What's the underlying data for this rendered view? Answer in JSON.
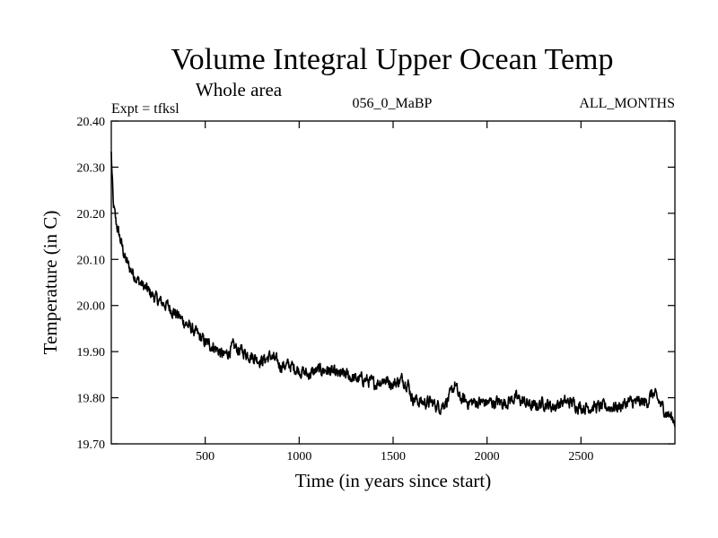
{
  "chart_data": {
    "type": "line",
    "title": "Volume Integral Upper Ocean Temp",
    "subtitle": "Whole area",
    "expt_label": "Expt = tfksl",
    "period_label": "056_0_MaBP",
    "months_label": "ALL_MONTHS",
    "xlabel": "Time (in years since start)",
    "ylabel": "Temperature (in C)",
    "xlim": [
      0,
      3000
    ],
    "ylim": [
      19.7,
      20.4
    ],
    "x_ticks": [
      500,
      1000,
      1500,
      2000,
      2500
    ],
    "x_tick_labels": [
      "500",
      "1000",
      "1500",
      "2000",
      "2500"
    ],
    "y_ticks": [
      19.7,
      19.8,
      19.9,
      20.0,
      20.1,
      20.2,
      20.3,
      20.4
    ],
    "y_tick_labels": [
      "19.70",
      "19.80",
      "19.90",
      "20.00",
      "20.10",
      "20.20",
      "20.30",
      "20.40"
    ],
    "grid": false,
    "series": [
      {
        "name": "tfksl",
        "x": [
          0,
          10,
          25,
          50,
          75,
          100,
          150,
          200,
          250,
          300,
          350,
          400,
          450,
          500,
          550,
          600,
          650,
          700,
          750,
          800,
          850,
          900,
          950,
          1000,
          1050,
          1100,
          1150,
          1200,
          1250,
          1300,
          1350,
          1400,
          1450,
          1500,
          1550,
          1580,
          1600,
          1650,
          1700,
          1750,
          1800,
          1830,
          1850,
          1900,
          1950,
          2000,
          2050,
          2100,
          2150,
          2200,
          2250,
          2300,
          2350,
          2400,
          2450,
          2500,
          2550,
          2600,
          2650,
          2700,
          2750,
          2800,
          2850,
          2880,
          2900,
          2950,
          3000
        ],
        "y": [
          20.33,
          20.22,
          20.18,
          20.14,
          20.1,
          20.08,
          20.05,
          20.03,
          20.01,
          20.0,
          19.98,
          19.96,
          19.94,
          19.92,
          19.91,
          19.89,
          19.91,
          19.9,
          19.89,
          19.88,
          19.89,
          19.87,
          19.87,
          19.86,
          19.85,
          19.86,
          19.86,
          19.85,
          19.85,
          19.84,
          19.84,
          19.83,
          19.84,
          19.83,
          19.84,
          19.83,
          19.8,
          19.79,
          19.79,
          19.78,
          19.8,
          19.83,
          19.8,
          19.79,
          19.79,
          19.79,
          19.79,
          19.79,
          19.8,
          19.79,
          19.78,
          19.79,
          19.78,
          19.79,
          19.79,
          19.78,
          19.78,
          19.78,
          19.78,
          19.78,
          19.79,
          19.79,
          19.79,
          19.81,
          19.8,
          19.77,
          19.75
        ]
      }
    ]
  }
}
